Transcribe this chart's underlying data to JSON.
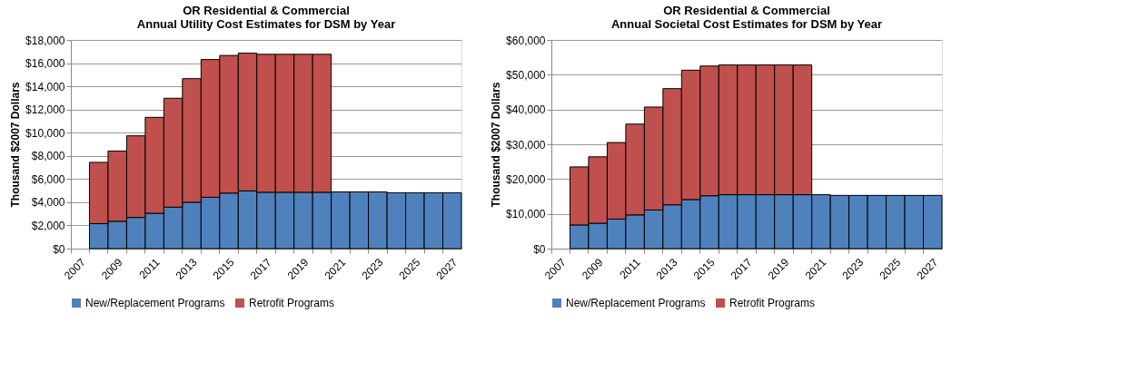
{
  "chart_data": [
    {
      "type": "bar",
      "stacked": true,
      "title": "OR Residential & Commercial\nAnnual Utility Cost Estimates for DSM by Year",
      "ylabel": "Thousand $2007 Dollars",
      "categories": [
        "2007",
        null,
        "2009",
        null,
        "2011",
        null,
        "2013",
        null,
        "2015",
        null,
        "2017",
        null,
        "2019",
        null,
        "2021",
        null,
        "2023",
        null,
        "2025",
        null,
        "2027"
      ],
      "series": [
        {
          "name": "New/Replacement Programs",
          "color": "#4f81bd",
          "values": [
            null,
            2150,
            2360,
            2690,
            3050,
            3580,
            4000,
            4430,
            4790,
            4980,
            4860,
            4860,
            4860,
            4860,
            4890,
            4890,
            4890,
            4820,
            4820,
            4820,
            4820
          ]
        },
        {
          "name": "Retrofit Programs",
          "color": "#c0504d",
          "values": [
            null,
            5290,
            6060,
            7040,
            8270,
            9390,
            10660,
            11880,
            11870,
            11880,
            11900,
            11900,
            11900,
            11900,
            null,
            null,
            null,
            null,
            null,
            null,
            null
          ]
        }
      ],
      "ylim": [
        0,
        18000
      ],
      "yticks": [
        {
          "value": 0,
          "label": "$0"
        },
        {
          "value": 2000,
          "label": "$2,000"
        },
        {
          "value": 4000,
          "label": "$4,000"
        },
        {
          "value": 6000,
          "label": "$6,000"
        },
        {
          "value": 8000,
          "label": "$8,000"
        },
        {
          "value": 10000,
          "label": "$10,000"
        },
        {
          "value": 12000,
          "label": "$12,000"
        },
        {
          "value": 14000,
          "label": "$14,000"
        },
        {
          "value": 16000,
          "label": "$16,000"
        },
        {
          "value": 18000,
          "label": "$18,000"
        }
      ],
      "grid": "y",
      "legend": "bottom"
    },
    {
      "type": "bar",
      "stacked": true,
      "title": "OR Residential & Commercial\nAnnual Societal Cost Estimates for DSM by Year",
      "ylabel": "Thousand $2007 Dollars",
      "categories": [
        "2007",
        null,
        "2009",
        null,
        "2011",
        null,
        "2013",
        null,
        "2015",
        null,
        "2017",
        null,
        "2019",
        null,
        "2021",
        null,
        "2023",
        null,
        "2025",
        null,
        "2027"
      ],
      "series": [
        {
          "name": "New/Replacement Programs",
          "color": "#4f81bd",
          "values": [
            null,
            6800,
            7300,
            8500,
            9700,
            11100,
            12600,
            14100,
            15200,
            15500,
            15500,
            15500,
            15500,
            15500,
            15500,
            15300,
            15300,
            15300,
            15300,
            15300,
            15300
          ]
        },
        {
          "name": "Retrofit Programs",
          "color": "#c0504d",
          "values": [
            null,
            16700,
            19100,
            22000,
            26100,
            29600,
            33400,
            37200,
            37300,
            37300,
            37300,
            37300,
            37300,
            37300,
            null,
            null,
            null,
            null,
            null,
            null,
            null
          ]
        }
      ],
      "ylim": [
        0,
        60000
      ],
      "yticks": [
        {
          "value": 0,
          "label": "$0"
        },
        {
          "value": 10000,
          "label": "$10,000"
        },
        {
          "value": 20000,
          "label": "$20,000"
        },
        {
          "value": 30000,
          "label": "$30,000"
        },
        {
          "value": 40000,
          "label": "$40,000"
        },
        {
          "value": 50000,
          "label": "$50,000"
        },
        {
          "value": 60000,
          "label": "$60,000"
        }
      ],
      "grid": "y",
      "legend": "bottom"
    }
  ]
}
